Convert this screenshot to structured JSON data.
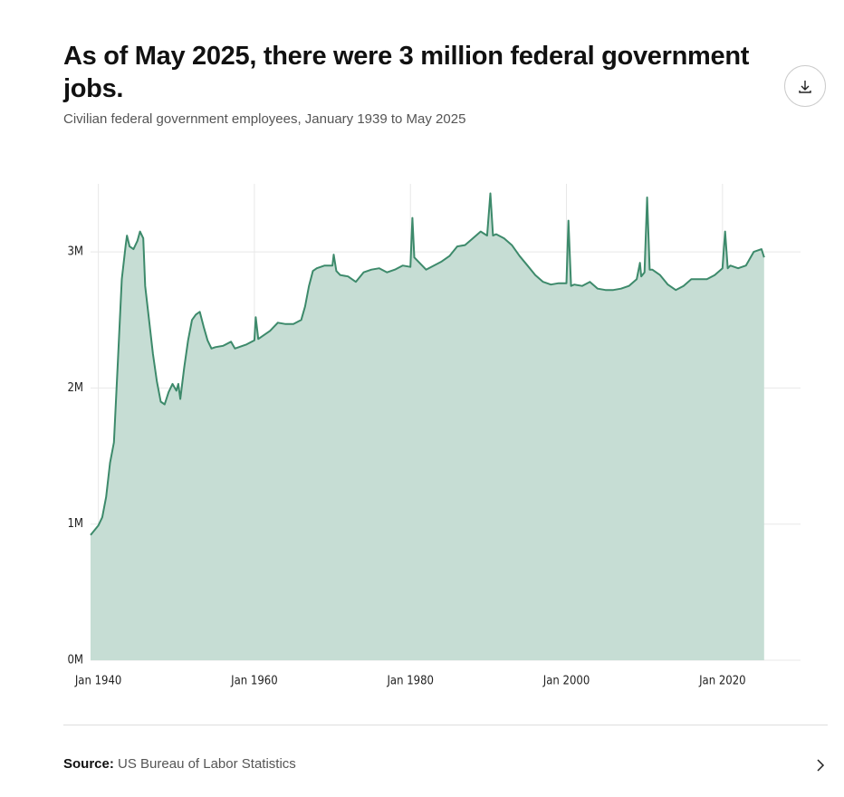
{
  "title": "As of May 2025, there were 3 million federal government jobs.",
  "subtitle": "Civilian federal government employees, January 1939 to May 2025",
  "chart_data": {
    "type": "area",
    "x": [
      "1939-01",
      "1940-01",
      "1940-07",
      "1941-01",
      "1941-07",
      "1942-01",
      "1942-07",
      "1943-01",
      "1943-07",
      "1943-09",
      "1944-01",
      "1944-07",
      "1945-01",
      "1945-05",
      "1945-10",
      "1946-01",
      "1946-07",
      "1947-01",
      "1947-07",
      "1948-01",
      "1948-07",
      "1949-01",
      "1949-07",
      "1950-01",
      "1950-04",
      "1950-07",
      "1951-01",
      "1951-07",
      "1952-01",
      "1952-07",
      "1953-01",
      "1953-07",
      "1954-01",
      "1954-07",
      "1955-01",
      "1956-01",
      "1957-01",
      "1957-07",
      "1958-01",
      "1959-01",
      "1960-01",
      "1960-03",
      "1960-07",
      "1961-01",
      "1962-01",
      "1963-01",
      "1964-01",
      "1965-01",
      "1966-01",
      "1966-07",
      "1967-01",
      "1967-07",
      "1968-01",
      "1969-01",
      "1970-01",
      "1970-03",
      "1970-07",
      "1971-01",
      "1972-01",
      "1973-01",
      "1974-01",
      "1975-01",
      "1976-01",
      "1977-01",
      "1978-01",
      "1979-01",
      "1980-01",
      "1980-04",
      "1980-07",
      "1981-01",
      "1982-01",
      "1983-01",
      "1984-01",
      "1985-01",
      "1986-01",
      "1987-01",
      "1988-01",
      "1989-01",
      "1989-11",
      "1990-04",
      "1990-08",
      "1991-01",
      "1992-01",
      "1993-01",
      "1994-01",
      "1995-01",
      "1996-01",
      "1997-01",
      "1998-01",
      "1999-01",
      "2000-01",
      "2000-04",
      "2000-08",
      "2001-01",
      "2002-01",
      "2003-01",
      "2004-01",
      "2005-01",
      "2006-01",
      "2007-01",
      "2008-01",
      "2009-01",
      "2009-06",
      "2009-08",
      "2010-01",
      "2010-05",
      "2010-09",
      "2011-01",
      "2012-01",
      "2013-01",
      "2014-01",
      "2015-01",
      "2016-01",
      "2017-01",
      "2018-01",
      "2019-01",
      "2020-01",
      "2020-05",
      "2020-09",
      "2021-01",
      "2022-01",
      "2023-01",
      "2024-01",
      "2025-01",
      "2025-05"
    ],
    "series": [
      {
        "name": "Civilian federal government employees",
        "color": "#3d8a6b",
        "fill": "#c6ddd4",
        "values": [
          920000,
          990000,
          1050000,
          1200000,
          1450000,
          1600000,
          2200000,
          2800000,
          3050000,
          3120000,
          3040000,
          3020000,
          3080000,
          3150000,
          3100000,
          2750000,
          2500000,
          2250000,
          2050000,
          1900000,
          1880000,
          1970000,
          2030000,
          1980000,
          2030000,
          1920000,
          2150000,
          2350000,
          2500000,
          2540000,
          2560000,
          2450000,
          2350000,
          2290000,
          2300000,
          2310000,
          2340000,
          2290000,
          2300000,
          2320000,
          2350000,
          2520000,
          2360000,
          2380000,
          2420000,
          2480000,
          2470000,
          2470000,
          2500000,
          2600000,
          2750000,
          2860000,
          2880000,
          2900000,
          2900000,
          2980000,
          2860000,
          2830000,
          2820000,
          2780000,
          2850000,
          2870000,
          2880000,
          2850000,
          2870000,
          2900000,
          2890000,
          3250000,
          2960000,
          2930000,
          2870000,
          2900000,
          2930000,
          2970000,
          3040000,
          3050000,
          3100000,
          3150000,
          3120000,
          3430000,
          3120000,
          3130000,
          3100000,
          3050000,
          2970000,
          2900000,
          2830000,
          2780000,
          2760000,
          2770000,
          2770000,
          3230000,
          2750000,
          2760000,
          2750000,
          2780000,
          2730000,
          2720000,
          2720000,
          2730000,
          2750000,
          2800000,
          2920000,
          2820000,
          2850000,
          3400000,
          2870000,
          2870000,
          2830000,
          2760000,
          2720000,
          2750000,
          2800000,
          2800000,
          2800000,
          2830000,
          2880000,
          3150000,
          2880000,
          2900000,
          2880000,
          2900000,
          3000000,
          3020000,
          2960000
        ]
      }
    ],
    "xlim": [
      "1939-01",
      "2030-01"
    ],
    "xticks": [
      {
        "value": "1940-01",
        "label": "Jan 1940"
      },
      {
        "value": "1960-01",
        "label": "Jan 1960"
      },
      {
        "value": "1980-01",
        "label": "Jan 1980"
      },
      {
        "value": "2000-01",
        "label": "Jan 2000"
      },
      {
        "value": "2020-01",
        "label": "Jan 2020"
      }
    ],
    "ylim": [
      0,
      3500000
    ],
    "yticks": [
      {
        "value": 0,
        "label": "0M"
      },
      {
        "value": 1000000,
        "label": "1M"
      },
      {
        "value": 2000000,
        "label": "2M"
      },
      {
        "value": 3000000,
        "label": "3M"
      }
    ],
    "grid": true
  },
  "source": {
    "label": "Source:",
    "text": "US Bureau of Labor Statistics"
  }
}
